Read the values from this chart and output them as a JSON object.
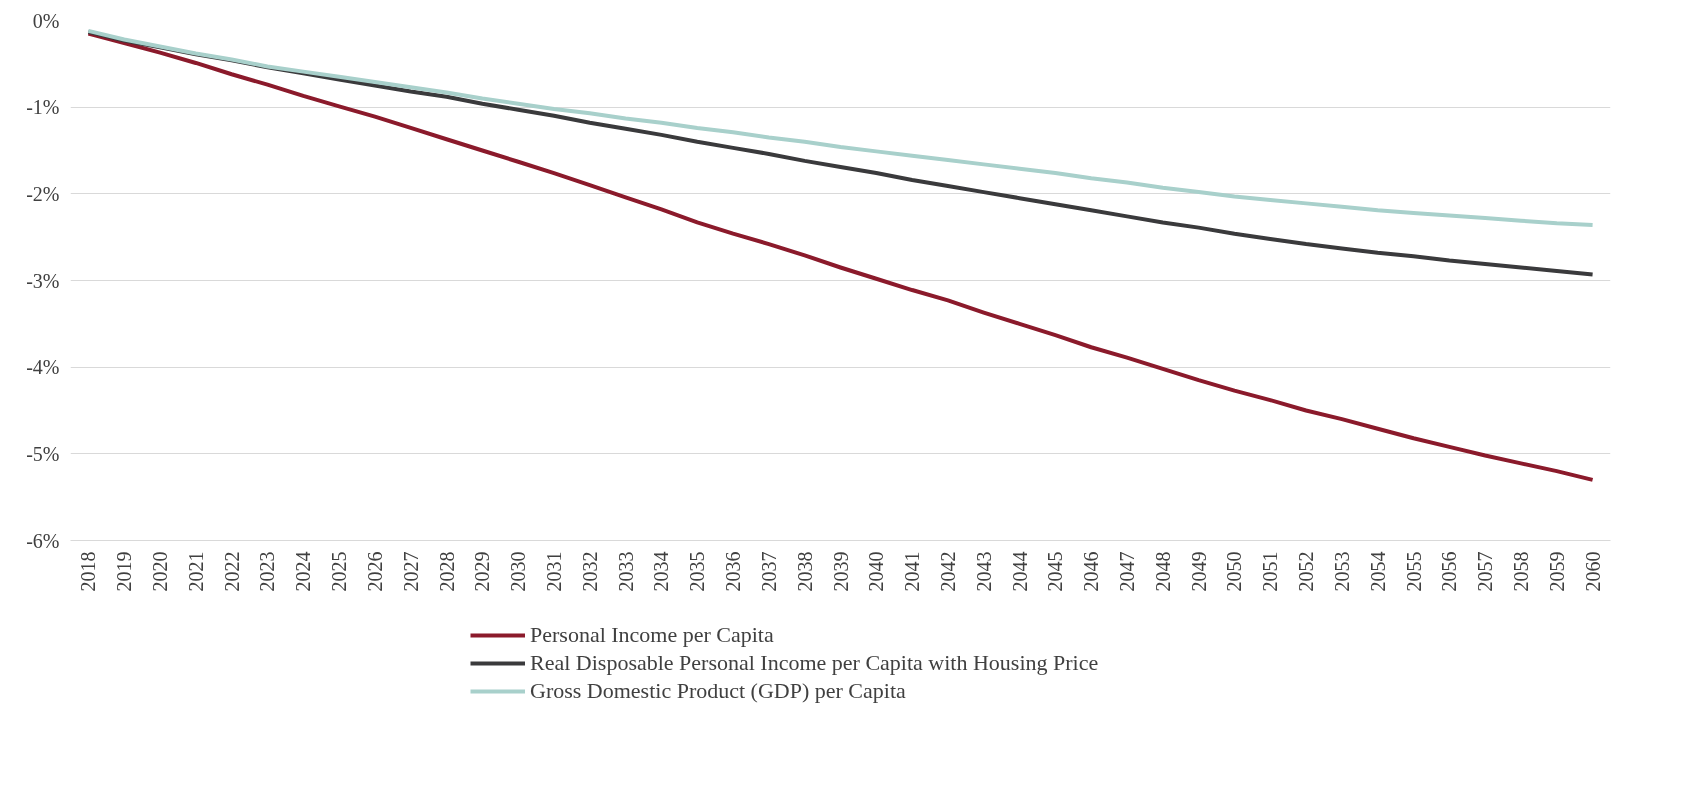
{
  "chart_data": {
    "type": "line",
    "categories": [
      "2018",
      "2019",
      "2020",
      "2021",
      "2022",
      "2023",
      "2024",
      "2025",
      "2026",
      "2027",
      "2028",
      "2029",
      "2030",
      "2031",
      "2032",
      "2033",
      "2034",
      "2035",
      "2036",
      "2037",
      "2038",
      "2039",
      "2040",
      "2041",
      "2042",
      "2043",
      "2044",
      "2045",
      "2046",
      "2047",
      "2048",
      "2049",
      "2050",
      "2051",
      "2052",
      "2053",
      "2054",
      "2055",
      "2056",
      "2057",
      "2058",
      "2059",
      "2060"
    ],
    "series": [
      {
        "name": "Personal Income per Capita",
        "color": "#8b1a2b",
        "values": [
          -0.15,
          -0.26,
          -0.37,
          -0.49,
          -0.62,
          -0.74,
          -0.87,
          -0.99,
          -1.11,
          -1.24,
          -1.37,
          -1.5,
          -1.63,
          -1.76,
          -1.9,
          -2.04,
          -2.18,
          -2.33,
          -2.46,
          -2.58,
          -2.71,
          -2.85,
          -2.98,
          -3.11,
          -3.23,
          -3.37,
          -3.5,
          -3.63,
          -3.77,
          -3.89,
          -4.02,
          -4.15,
          -4.27,
          -4.38,
          -4.5,
          -4.6,
          -4.71,
          -4.82,
          -4.92,
          -5.02,
          -5.11,
          -5.2,
          -5.3
        ]
      },
      {
        "name": "Real Disposable Personal Income per Capita with Housing Price",
        "color": "#3a3a3c",
        "values": [
          -0.13,
          -0.23,
          -0.31,
          -0.39,
          -0.46,
          -0.54,
          -0.61,
          -0.68,
          -0.75,
          -0.82,
          -0.88,
          -0.96,
          -1.03,
          -1.1,
          -1.18,
          -1.25,
          -1.32,
          -1.4,
          -1.47,
          -1.54,
          -1.62,
          -1.69,
          -1.76,
          -1.84,
          -1.91,
          -1.98,
          -2.05,
          -2.12,
          -2.19,
          -2.26,
          -2.33,
          -2.39,
          -2.46,
          -2.52,
          -2.58,
          -2.63,
          -2.68,
          -2.72,
          -2.77,
          -2.81,
          -2.85,
          -2.89,
          -2.93
        ]
      },
      {
        "name": "Gross Domestic Product (GDP) per Capita",
        "color": "#a8d0cb",
        "values": [
          -0.12,
          -0.22,
          -0.3,
          -0.38,
          -0.45,
          -0.53,
          -0.59,
          -0.65,
          -0.71,
          -0.77,
          -0.83,
          -0.9,
          -0.96,
          -1.02,
          -1.07,
          -1.13,
          -1.18,
          -1.24,
          -1.29,
          -1.35,
          -1.4,
          -1.46,
          -1.51,
          -1.56,
          -1.61,
          -1.66,
          -1.71,
          -1.76,
          -1.82,
          -1.87,
          -1.93,
          -1.98,
          -2.03,
          -2.07,
          -2.11,
          -2.15,
          -2.19,
          -2.22,
          -2.25,
          -2.28,
          -2.31,
          -2.34,
          -2.36
        ]
      }
    ],
    "ylim": [
      -6,
      0
    ],
    "yticks": [
      {
        "value": -6,
        "label": "-6%"
      },
      {
        "value": -5,
        "label": "-5%"
      },
      {
        "value": -4,
        "label": "-4%"
      },
      {
        "value": -3,
        "label": "-3%"
      },
      {
        "value": -2,
        "label": "-2%"
      },
      {
        "value": -1,
        "label": "-1%"
      },
      {
        "value": 0,
        "label": "0%"
      }
    ],
    "grid": "y",
    "legend": "bottom",
    "marker": "none",
    "line_style": "solid"
  }
}
